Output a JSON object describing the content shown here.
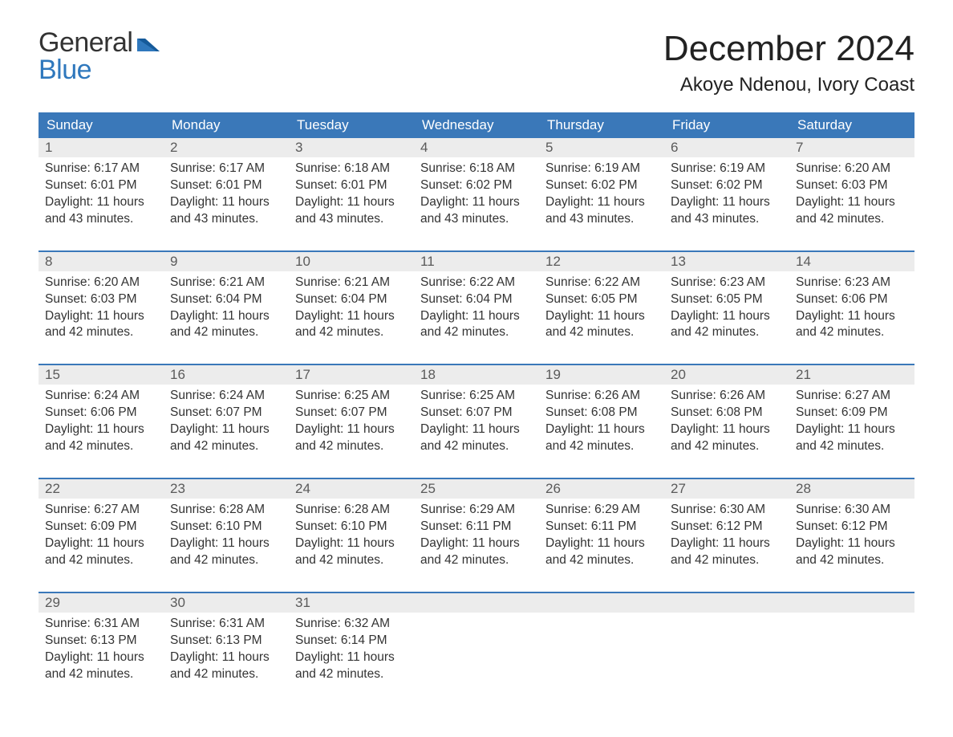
{
  "brand": {
    "word1": "General",
    "word2": "Blue",
    "text_color": "#333333",
    "accent_color": "#2f78bd"
  },
  "title": {
    "month": "December 2024",
    "location": "Akoye Ndenou, Ivory Coast"
  },
  "colors": {
    "header_bg": "#3a78b9",
    "header_text": "#ffffff",
    "week_border": "#3a78b9",
    "daynum_bg": "#ececec",
    "daynum_text": "#5a5a5a",
    "body_text": "#333333",
    "background": "#ffffff"
  },
  "day_headers": [
    "Sunday",
    "Monday",
    "Tuesday",
    "Wednesday",
    "Thursday",
    "Friday",
    "Saturday"
  ],
  "weeks": [
    [
      {
        "n": "1",
        "sr": "6:17 AM",
        "ss": "6:01 PM",
        "dl": "11 hours and 43 minutes."
      },
      {
        "n": "2",
        "sr": "6:17 AM",
        "ss": "6:01 PM",
        "dl": "11 hours and 43 minutes."
      },
      {
        "n": "3",
        "sr": "6:18 AM",
        "ss": "6:01 PM",
        "dl": "11 hours and 43 minutes."
      },
      {
        "n": "4",
        "sr": "6:18 AM",
        "ss": "6:02 PM",
        "dl": "11 hours and 43 minutes."
      },
      {
        "n": "5",
        "sr": "6:19 AM",
        "ss": "6:02 PM",
        "dl": "11 hours and 43 minutes."
      },
      {
        "n": "6",
        "sr": "6:19 AM",
        "ss": "6:02 PM",
        "dl": "11 hours and 43 minutes."
      },
      {
        "n": "7",
        "sr": "6:20 AM",
        "ss": "6:03 PM",
        "dl": "11 hours and 42 minutes."
      }
    ],
    [
      {
        "n": "8",
        "sr": "6:20 AM",
        "ss": "6:03 PM",
        "dl": "11 hours and 42 minutes."
      },
      {
        "n": "9",
        "sr": "6:21 AM",
        "ss": "6:04 PM",
        "dl": "11 hours and 42 minutes."
      },
      {
        "n": "10",
        "sr": "6:21 AM",
        "ss": "6:04 PM",
        "dl": "11 hours and 42 minutes."
      },
      {
        "n": "11",
        "sr": "6:22 AM",
        "ss": "6:04 PM",
        "dl": "11 hours and 42 minutes."
      },
      {
        "n": "12",
        "sr": "6:22 AM",
        "ss": "6:05 PM",
        "dl": "11 hours and 42 minutes."
      },
      {
        "n": "13",
        "sr": "6:23 AM",
        "ss": "6:05 PM",
        "dl": "11 hours and 42 minutes."
      },
      {
        "n": "14",
        "sr": "6:23 AM",
        "ss": "6:06 PM",
        "dl": "11 hours and 42 minutes."
      }
    ],
    [
      {
        "n": "15",
        "sr": "6:24 AM",
        "ss": "6:06 PM",
        "dl": "11 hours and 42 minutes."
      },
      {
        "n": "16",
        "sr": "6:24 AM",
        "ss": "6:07 PM",
        "dl": "11 hours and 42 minutes."
      },
      {
        "n": "17",
        "sr": "6:25 AM",
        "ss": "6:07 PM",
        "dl": "11 hours and 42 minutes."
      },
      {
        "n": "18",
        "sr": "6:25 AM",
        "ss": "6:07 PM",
        "dl": "11 hours and 42 minutes."
      },
      {
        "n": "19",
        "sr": "6:26 AM",
        "ss": "6:08 PM",
        "dl": "11 hours and 42 minutes."
      },
      {
        "n": "20",
        "sr": "6:26 AM",
        "ss": "6:08 PM",
        "dl": "11 hours and 42 minutes."
      },
      {
        "n": "21",
        "sr": "6:27 AM",
        "ss": "6:09 PM",
        "dl": "11 hours and 42 minutes."
      }
    ],
    [
      {
        "n": "22",
        "sr": "6:27 AM",
        "ss": "6:09 PM",
        "dl": "11 hours and 42 minutes."
      },
      {
        "n": "23",
        "sr": "6:28 AM",
        "ss": "6:10 PM",
        "dl": "11 hours and 42 minutes."
      },
      {
        "n": "24",
        "sr": "6:28 AM",
        "ss": "6:10 PM",
        "dl": "11 hours and 42 minutes."
      },
      {
        "n": "25",
        "sr": "6:29 AM",
        "ss": "6:11 PM",
        "dl": "11 hours and 42 minutes."
      },
      {
        "n": "26",
        "sr": "6:29 AM",
        "ss": "6:11 PM",
        "dl": "11 hours and 42 minutes."
      },
      {
        "n": "27",
        "sr": "6:30 AM",
        "ss": "6:12 PM",
        "dl": "11 hours and 42 minutes."
      },
      {
        "n": "28",
        "sr": "6:30 AM",
        "ss": "6:12 PM",
        "dl": "11 hours and 42 minutes."
      }
    ],
    [
      {
        "n": "29",
        "sr": "6:31 AM",
        "ss": "6:13 PM",
        "dl": "11 hours and 42 minutes."
      },
      {
        "n": "30",
        "sr": "6:31 AM",
        "ss": "6:13 PM",
        "dl": "11 hours and 42 minutes."
      },
      {
        "n": "31",
        "sr": "6:32 AM",
        "ss": "6:14 PM",
        "dl": "11 hours and 42 minutes."
      },
      null,
      null,
      null,
      null
    ]
  ],
  "labels": {
    "sunrise": "Sunrise: ",
    "sunset": "Sunset: ",
    "daylight": "Daylight: "
  }
}
